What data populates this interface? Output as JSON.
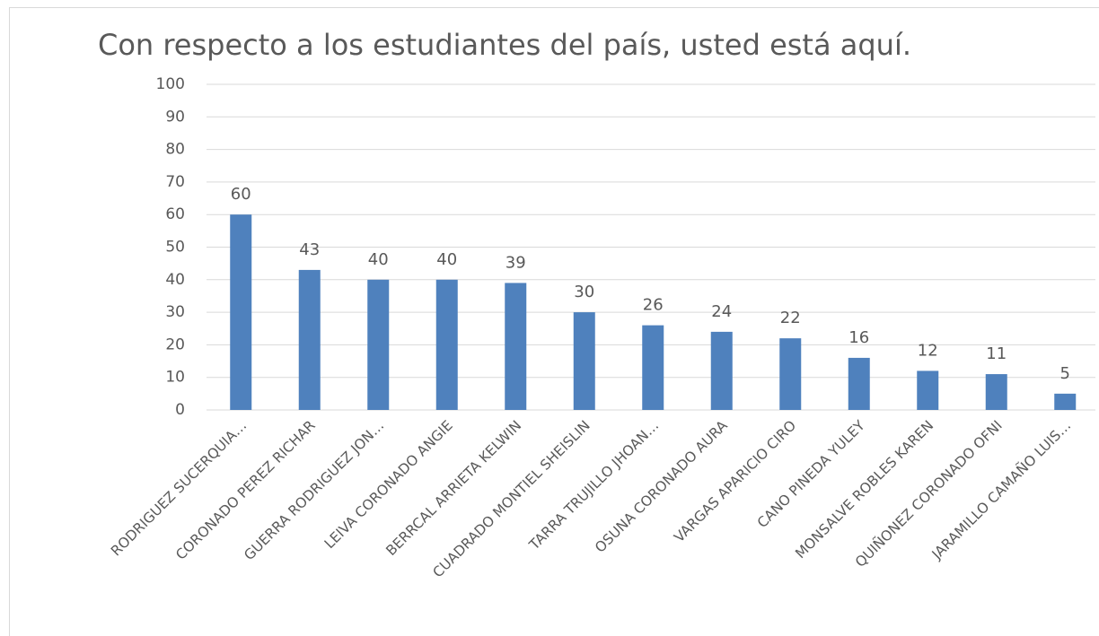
{
  "chart_data": {
    "type": "bar",
    "title": "Con respecto a los estudiantes del país, usted está aquí.",
    "categories": [
      "RODRIGUEZ SUCERQUIA…",
      "CORONADO PEREZ RICHAR",
      "GUERRA RODRIGUEZ JON…",
      "LEIVA CORONADO ANGIE",
      "BERRCAL ARRIETA KELWIN",
      "CUADRADO MONTIEL SHEISLIN",
      "TARRA TRUJILLO JHOAN…",
      "OSUNA CORONADO AURA",
      "VARGAS APARICIO CIRO",
      "CANO PINEDA YULEY",
      "MONSALVE ROBLES KAREN",
      "QUIÑONEZ CORONADO OFNI",
      "JARAMILLO CAMAÑO LUIS…"
    ],
    "values": [
      60,
      43,
      40,
      40,
      39,
      30,
      26,
      24,
      22,
      16,
      12,
      11,
      5
    ],
    "color": "#4f81bd",
    "ylim": [
      0,
      100
    ],
    "yticks": [
      0,
      10,
      20,
      30,
      40,
      50,
      60,
      70,
      80,
      90,
      100
    ],
    "grid": true
  }
}
